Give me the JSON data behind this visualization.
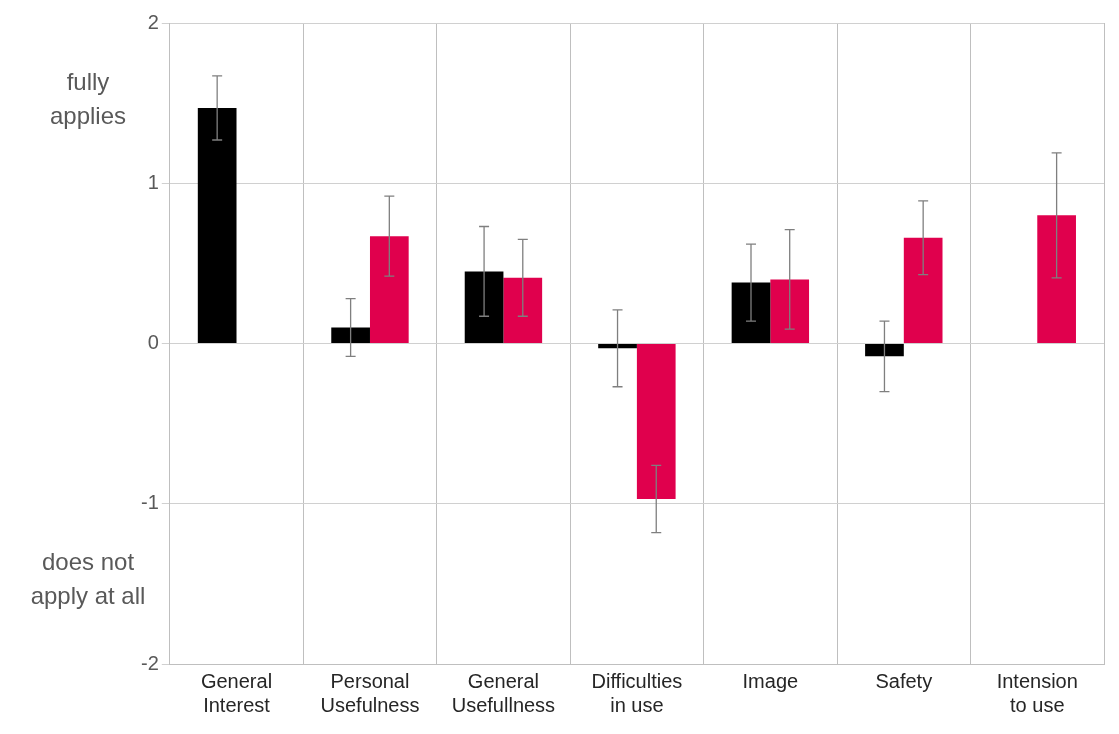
{
  "chart_data": {
    "type": "bar",
    "categories": [
      "General Interest",
      "Personal Usefulness",
      "General Usefullness",
      "Difficulties in use",
      "Image",
      "Safety",
      "Intension to use"
    ],
    "series": [
      {
        "color": "#000000",
        "values": [
          1.47,
          0.1,
          0.45,
          -0.03,
          0.38,
          -0.08,
          null
        ],
        "errors": [
          0.2,
          0.18,
          0.28,
          0.24,
          0.24,
          0.22,
          null
        ]
      },
      {
        "color": "#e0004d",
        "values": [
          null,
          0.67,
          0.41,
          -0.97,
          0.4,
          0.66,
          0.8
        ],
        "errors": [
          null,
          0.25,
          0.24,
          0.21,
          0.31,
          0.23,
          0.39
        ]
      }
    ],
    "ylim": [
      -2,
      2
    ],
    "yticks": [
      -2,
      -1,
      0,
      1,
      2
    ],
    "grid": true,
    "legend": false,
    "annotations": [
      "fully applies",
      "does not apply at all"
    ]
  }
}
